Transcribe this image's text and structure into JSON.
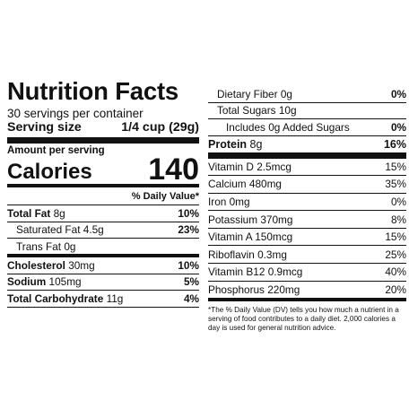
{
  "label": {
    "title": "Nutrition Facts",
    "servings": "30 servings per container",
    "serving_size_label": "Serving size",
    "serving_size_value": "1/4 cup (29g)",
    "amount_per_serving": "Amount per serving",
    "calories_label": "Calories",
    "calories_value": "140",
    "daily_value_header": "% Daily Value*"
  },
  "left_rows": [
    {
      "name": "Total Fat",
      "amount": "8g",
      "dv": "10%"
    },
    {
      "name": "Saturated Fat",
      "amount": "4.5g",
      "dv": "23%"
    },
    {
      "name": "Trans Fat",
      "amount": "0g",
      "dv": ""
    },
    {
      "name": "Cholesterol",
      "amount": "30mg",
      "dv": "10%"
    },
    {
      "name": "Sodium",
      "amount": "105mg",
      "dv": "5%"
    },
    {
      "name": "Total Carbohydrate",
      "amount": "11g",
      "dv": "4%"
    }
  ],
  "right_rows": [
    {
      "name": "Dietary Fiber",
      "amount": "0g",
      "dv": "0%"
    },
    {
      "name": "Total Sugars",
      "amount": "10g",
      "dv": ""
    },
    {
      "name": "Includes 0g Added Sugars",
      "amount": "",
      "dv": "0%"
    },
    {
      "name": "Protein",
      "amount": "8g",
      "dv": "16%"
    }
  ],
  "vitamins": [
    {
      "name": "Vitamin D",
      "amount": "2.5mcg",
      "dv": "15%"
    },
    {
      "name": "Calcium",
      "amount": "480mg",
      "dv": "35%"
    },
    {
      "name": "Iron",
      "amount": "0mg",
      "dv": "0%"
    },
    {
      "name": "Potassium",
      "amount": "370mg",
      "dv": "8%"
    },
    {
      "name": "Vitamin A",
      "amount": "150mcg",
      "dv": "15%"
    },
    {
      "name": "Riboflavin",
      "amount": "0.3mg",
      "dv": "25%"
    },
    {
      "name": "Vitamin B12",
      "amount": "0.9mcg",
      "dv": "40%"
    },
    {
      "name": "Phosphorus",
      "amount": "220mg",
      "dv": "20%"
    }
  ],
  "footnote": "*The % Daily Value (DV) tells you how much a nutrient in a serving of food contributes to a daily diet. 2,000 calories a day is used for general nutrition advice."
}
